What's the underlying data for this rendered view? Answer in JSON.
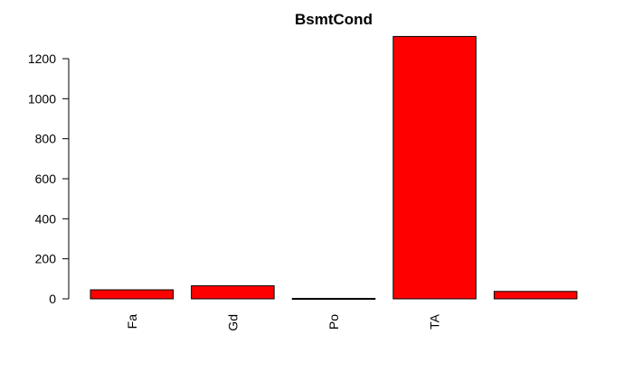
{
  "chart_data": {
    "type": "bar",
    "title": "BsmtCond",
    "xlabel": "",
    "ylabel": "",
    "categories": [
      "Fa",
      "Gd",
      "Po",
      "TA",
      ""
    ],
    "values": [
      45,
      65,
      2,
      1311,
      37
    ],
    "yticks": [
      "0",
      "200",
      "400",
      "600",
      "800",
      "1000",
      "1200"
    ],
    "ylim": [
      0,
      1311
    ],
    "grid": false,
    "legend": "none",
    "bar_color": "#ff0000",
    "bar_stroke": "#000000"
  }
}
